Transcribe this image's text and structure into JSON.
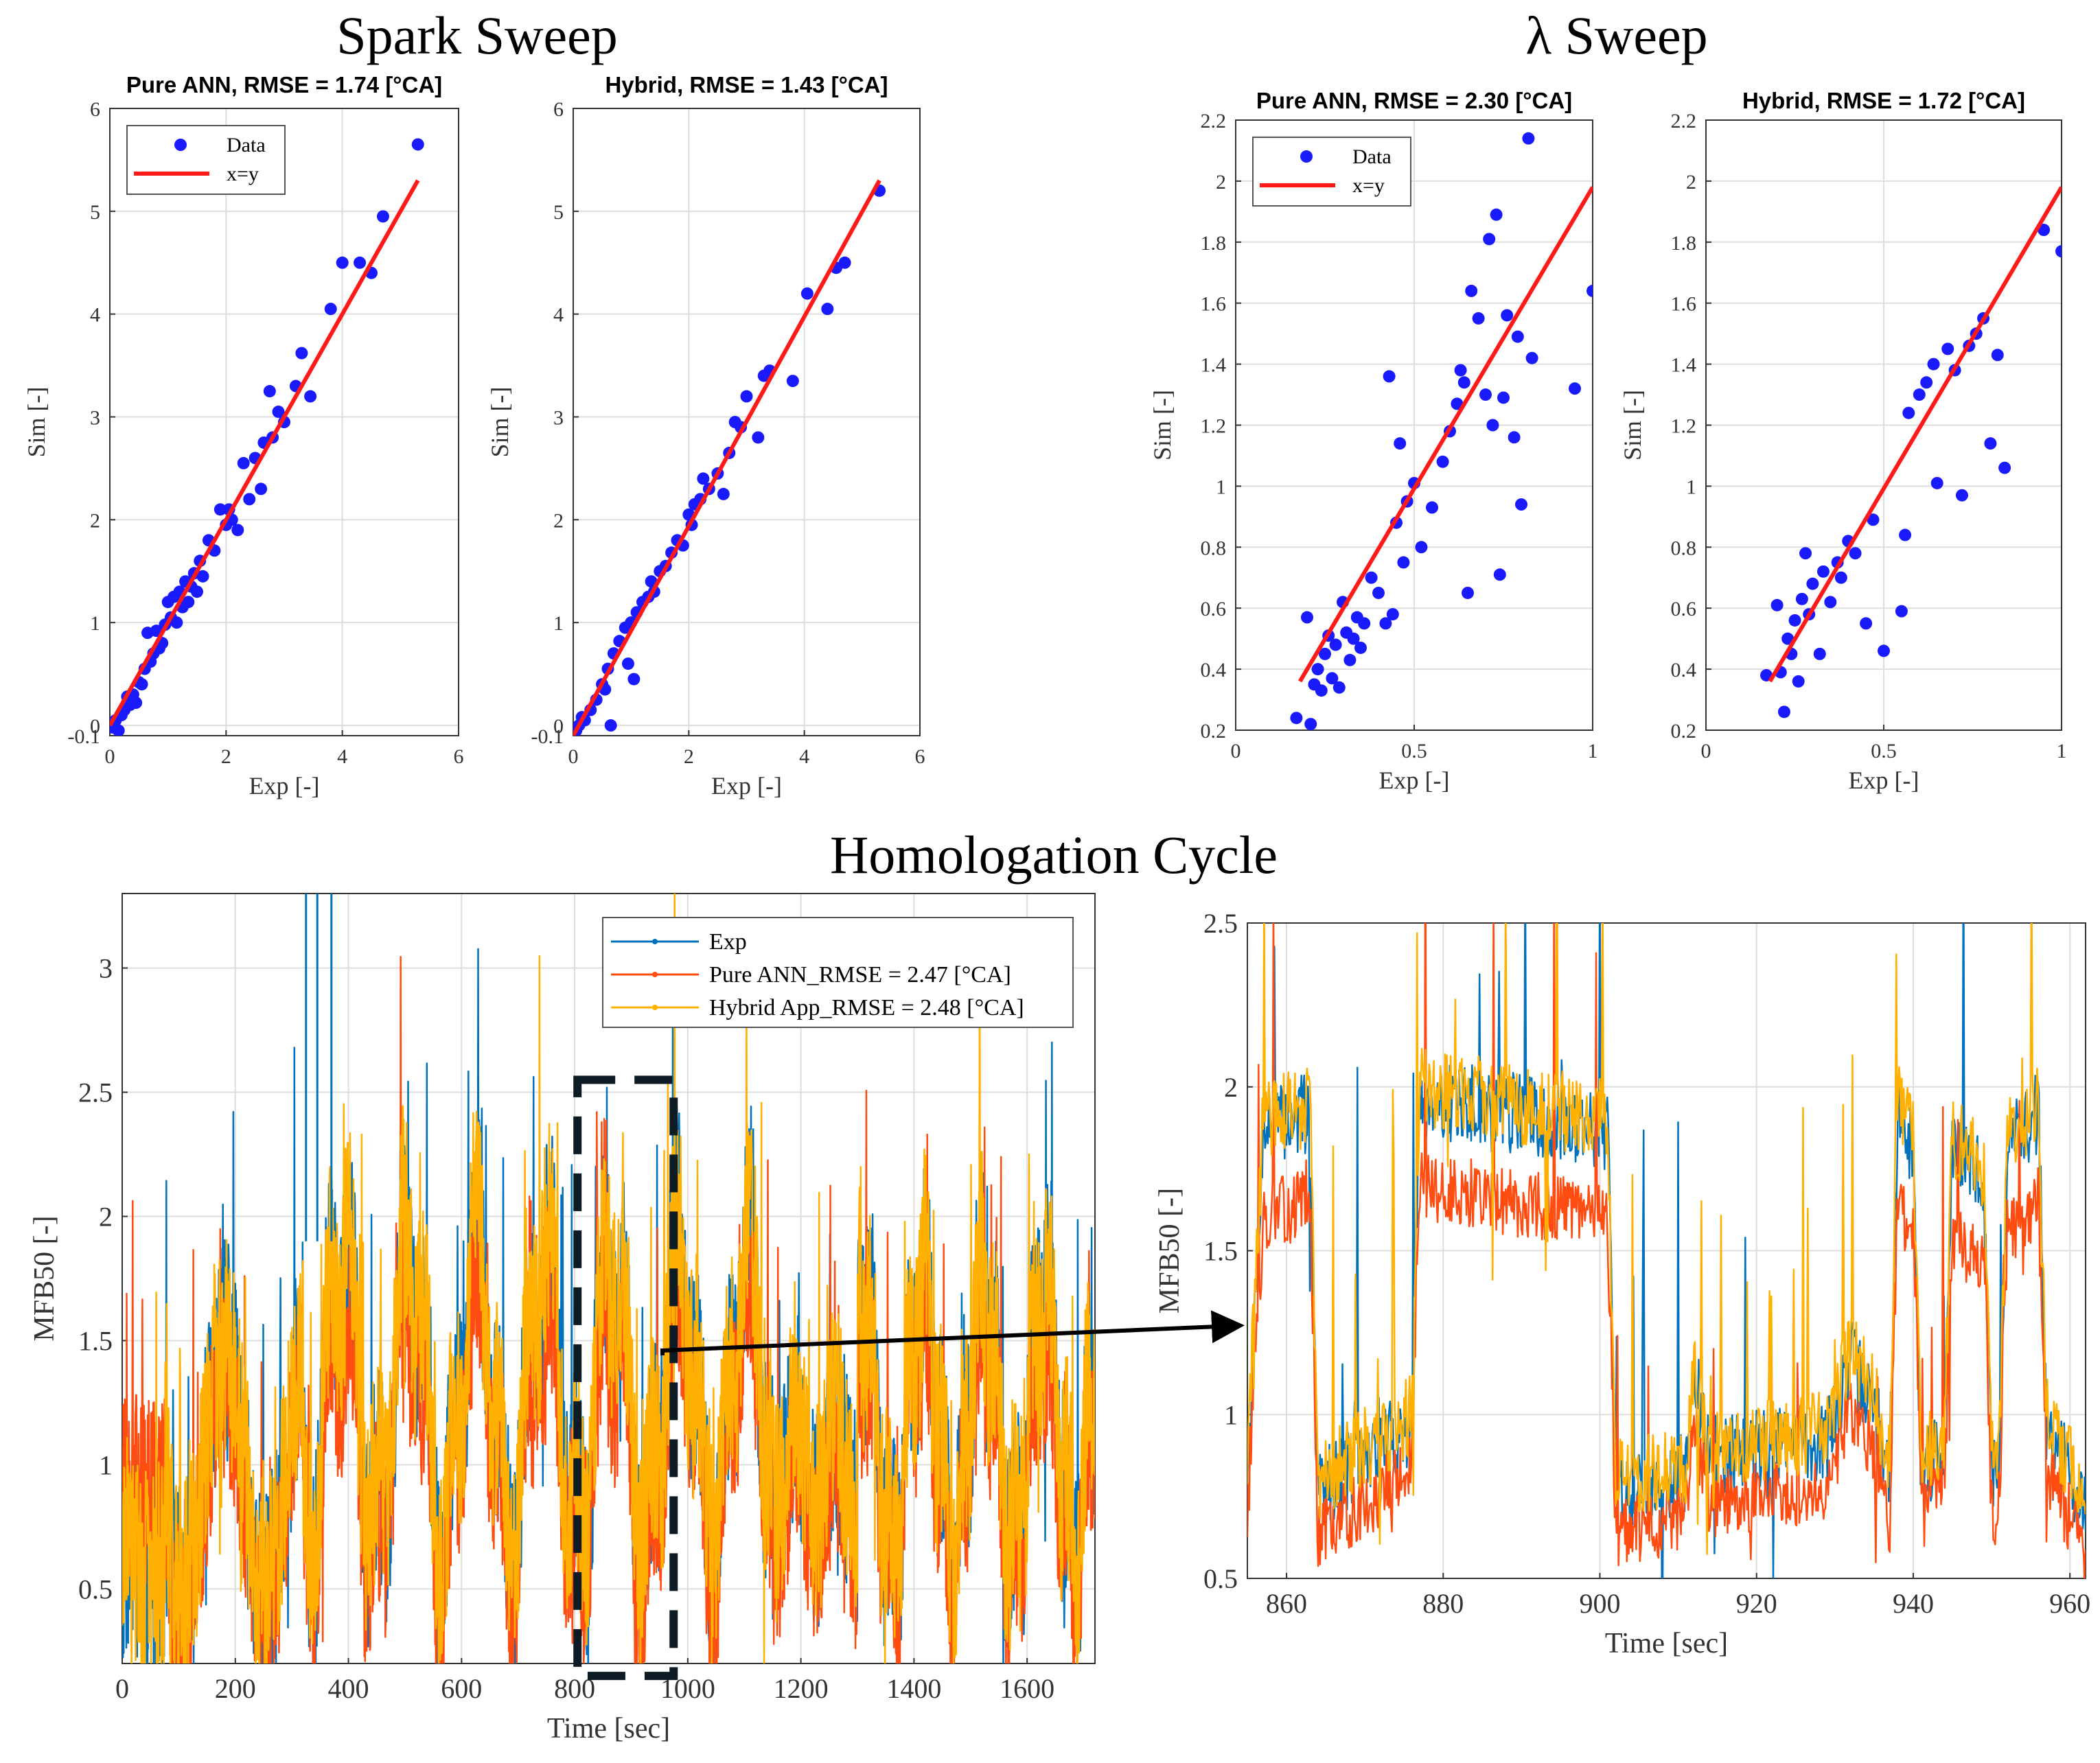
{
  "titles": {
    "spark": "Spark Sweep",
    "lambda": "λ Sweep",
    "homologation": "Homologation Cycle"
  },
  "colors": {
    "data": "#1a1aff",
    "xy_line": "#ff1a1a",
    "exp": "#0072bd",
    "pure_ann": "#ff4d12",
    "hybrid": "#ffb000",
    "grid": "#dedede",
    "axis": "#333333"
  },
  "chart_data": [
    {
      "id": "spark-ann",
      "type": "scatter",
      "title": "Pure ANN, RMSE = 1.74 [°CA]",
      "xlabel": "Exp [-]",
      "ylabel": "Sim [-]",
      "xlim": [
        0,
        6
      ],
      "ylim": [
        -0.1,
        6
      ],
      "xticks": [
        "0",
        "2",
        "4",
        "6"
      ],
      "yticks": [
        "-0.1",
        "0",
        "1",
        "2",
        "3",
        "4",
        "5",
        "6"
      ],
      "legend": [
        "Data",
        "x=y"
      ],
      "line": [
        [
          0,
          0
        ],
        [
          5.3,
          5.3
        ]
      ],
      "points": [
        [
          0.0,
          0.02
        ],
        [
          0.05,
          -0.02
        ],
        [
          0.1,
          0.05
        ],
        [
          0.15,
          -0.05
        ],
        [
          0.2,
          0.1
        ],
        [
          0.25,
          0.15
        ],
        [
          0.3,
          0.28
        ],
        [
          0.35,
          0.2
        ],
        [
          0.4,
          0.3
        ],
        [
          0.45,
          0.22
        ],
        [
          0.5,
          0.42
        ],
        [
          0.55,
          0.4
        ],
        [
          0.6,
          0.55
        ],
        [
          0.65,
          0.9
        ],
        [
          0.7,
          0.62
        ],
        [
          0.75,
          0.7
        ],
        [
          0.8,
          0.92
        ],
        [
          0.85,
          0.75
        ],
        [
          0.9,
          0.8
        ],
        [
          0.95,
          0.98
        ],
        [
          1.0,
          1.2
        ],
        [
          1.05,
          1.05
        ],
        [
          1.1,
          1.25
        ],
        [
          1.15,
          1.0
        ],
        [
          1.2,
          1.3
        ],
        [
          1.25,
          1.15
        ],
        [
          1.3,
          1.4
        ],
        [
          1.35,
          1.2
        ],
        [
          1.4,
          1.35
        ],
        [
          1.45,
          1.48
        ],
        [
          1.5,
          1.3
        ],
        [
          1.55,
          1.6
        ],
        [
          1.6,
          1.45
        ],
        [
          1.7,
          1.8
        ],
        [
          1.8,
          1.7
        ],
        [
          1.9,
          2.1
        ],
        [
          2.0,
          1.95
        ],
        [
          2.05,
          2.1
        ],
        [
          2.1,
          2.0
        ],
        [
          2.2,
          1.9
        ],
        [
          2.3,
          2.55
        ],
        [
          2.4,
          2.2
        ],
        [
          2.5,
          2.6
        ],
        [
          2.6,
          2.3
        ],
        [
          2.65,
          2.75
        ],
        [
          2.75,
          3.25
        ],
        [
          2.8,
          2.8
        ],
        [
          2.9,
          3.05
        ],
        [
          3.0,
          2.95
        ],
        [
          3.2,
          3.3
        ],
        [
          3.3,
          3.62
        ],
        [
          3.45,
          3.2
        ],
        [
          3.8,
          4.05
        ],
        [
          4.0,
          4.5
        ],
        [
          4.3,
          4.5
        ],
        [
          4.5,
          4.4
        ],
        [
          4.7,
          4.95
        ],
        [
          5.3,
          5.65
        ]
      ]
    },
    {
      "id": "spark-hybrid",
      "type": "scatter",
      "title": "Hybrid, RMSE = 1.43 [°CA]",
      "xlabel": "Exp [-]",
      "ylabel": "Sim [-]",
      "xlim": [
        0,
        6
      ],
      "ylim": [
        -0.1,
        6
      ],
      "xticks": [
        "0",
        "2",
        "4",
        "6"
      ],
      "yticks": [
        "-0.1",
        "0",
        "1",
        "2",
        "3",
        "4",
        "5",
        "6"
      ],
      "legend": [],
      "line": [
        [
          0,
          -0.1
        ],
        [
          5.3,
          5.3
        ]
      ],
      "points": [
        [
          0.0,
          -0.25
        ],
        [
          0.05,
          -0.05
        ],
        [
          0.1,
          0.0
        ],
        [
          0.15,
          0.08
        ],
        [
          0.2,
          0.05
        ],
        [
          0.3,
          0.15
        ],
        [
          0.4,
          0.25
        ],
        [
          0.5,
          0.4
        ],
        [
          0.55,
          0.35
        ],
        [
          0.6,
          0.55
        ],
        [
          0.65,
          0.0
        ],
        [
          0.7,
          0.7
        ],
        [
          0.8,
          0.82
        ],
        [
          0.9,
          0.95
        ],
        [
          0.95,
          0.6
        ],
        [
          1.0,
          1.0
        ],
        [
          1.05,
          0.45
        ],
        [
          1.1,
          1.1
        ],
        [
          1.2,
          1.2
        ],
        [
          1.3,
          1.25
        ],
        [
          1.35,
          1.4
        ],
        [
          1.4,
          1.3
        ],
        [
          1.5,
          1.5
        ],
        [
          1.6,
          1.55
        ],
        [
          1.7,
          1.68
        ],
        [
          1.8,
          1.8
        ],
        [
          1.9,
          1.75
        ],
        [
          2.0,
          2.05
        ],
        [
          2.05,
          1.95
        ],
        [
          2.1,
          2.15
        ],
        [
          2.2,
          2.2
        ],
        [
          2.25,
          2.4
        ],
        [
          2.35,
          2.3
        ],
        [
          2.5,
          2.45
        ],
        [
          2.6,
          2.25
        ],
        [
          2.7,
          2.65
        ],
        [
          2.8,
          2.95
        ],
        [
          2.9,
          2.9
        ],
        [
          3.0,
          3.2
        ],
        [
          3.2,
          2.8
        ],
        [
          3.3,
          3.4
        ],
        [
          3.4,
          3.45
        ],
        [
          3.8,
          3.35
        ],
        [
          4.05,
          4.2
        ],
        [
          4.4,
          4.05
        ],
        [
          4.55,
          4.45
        ],
        [
          4.7,
          4.5
        ],
        [
          5.3,
          5.2
        ]
      ]
    },
    {
      "id": "lambda-ann",
      "type": "scatter",
      "title": "Pure ANN, RMSE = 2.30 [°CA]",
      "xlabel": "Exp [-]",
      "ylabel": "Sim [-]",
      "xlim": [
        0,
        1
      ],
      "ylim": [
        0.2,
        2.2
      ],
      "xticks": [
        "0",
        "0.5",
        "1"
      ],
      "yticks": [
        "0.2",
        "0.4",
        "0.6",
        "0.8",
        "1",
        "1.2",
        "1.4",
        "1.6",
        "1.8",
        "2",
        "2.2"
      ],
      "legend": [
        "Data",
        "x=y"
      ],
      "line": [
        [
          0.18,
          0.36
        ],
        [
          1.0,
          1.98
        ]
      ],
      "points": [
        [
          0.17,
          0.24
        ],
        [
          0.2,
          0.57
        ],
        [
          0.21,
          0.22
        ],
        [
          0.22,
          0.35
        ],
        [
          0.23,
          0.4
        ],
        [
          0.24,
          0.33
        ],
        [
          0.25,
          0.45
        ],
        [
          0.26,
          0.51
        ],
        [
          0.27,
          0.37
        ],
        [
          0.28,
          0.48
        ],
        [
          0.29,
          0.34
        ],
        [
          0.3,
          0.62
        ],
        [
          0.31,
          0.52
        ],
        [
          0.32,
          0.43
        ],
        [
          0.33,
          0.5
        ],
        [
          0.34,
          0.57
        ],
        [
          0.35,
          0.47
        ],
        [
          0.36,
          0.55
        ],
        [
          0.38,
          0.7
        ],
        [
          0.4,
          0.65
        ],
        [
          0.42,
          0.55
        ],
        [
          0.43,
          1.36
        ],
        [
          0.44,
          0.58
        ],
        [
          0.45,
          0.88
        ],
        [
          0.46,
          1.14
        ],
        [
          0.47,
          0.75
        ],
        [
          0.48,
          0.95
        ],
        [
          0.5,
          1.01
        ],
        [
          0.52,
          0.8
        ],
        [
          0.55,
          0.93
        ],
        [
          0.58,
          1.08
        ],
        [
          0.6,
          1.18
        ],
        [
          0.62,
          1.27
        ],
        [
          0.63,
          1.38
        ],
        [
          0.64,
          1.34
        ],
        [
          0.65,
          0.65
        ],
        [
          0.66,
          1.64
        ],
        [
          0.68,
          1.55
        ],
        [
          0.7,
          1.3
        ],
        [
          0.71,
          1.81
        ],
        [
          0.72,
          1.2
        ],
        [
          0.73,
          1.89
        ],
        [
          0.74,
          0.71
        ],
        [
          0.75,
          1.29
        ],
        [
          0.76,
          1.56
        ],
        [
          0.78,
          1.16
        ],
        [
          0.79,
          1.49
        ],
        [
          0.8,
          0.94
        ],
        [
          0.82,
          2.14
        ],
        [
          0.83,
          1.42
        ],
        [
          0.95,
          1.32
        ],
        [
          1.0,
          1.64
        ]
      ]
    },
    {
      "id": "lambda-hybrid",
      "type": "scatter",
      "title": "Hybrid, RMSE = 1.72 [°CA]",
      "xlabel": "Exp [-]",
      "ylabel": "Sim [-]",
      "xlim": [
        0,
        1
      ],
      "ylim": [
        0.2,
        2.2
      ],
      "xticks": [
        "0",
        "0.5",
        "1"
      ],
      "yticks": [
        "0.2",
        "0.4",
        "0.6",
        "0.8",
        "1",
        "1.2",
        "1.4",
        "1.6",
        "1.8",
        "2",
        "2.2"
      ],
      "legend": [],
      "line": [
        [
          0.18,
          0.36
        ],
        [
          1.0,
          1.98
        ]
      ],
      "points": [
        [
          0.17,
          0.38
        ],
        [
          0.2,
          0.61
        ],
        [
          0.21,
          0.39
        ],
        [
          0.22,
          0.26
        ],
        [
          0.23,
          0.5
        ],
        [
          0.24,
          0.45
        ],
        [
          0.25,
          0.56
        ],
        [
          0.26,
          0.36
        ],
        [
          0.27,
          0.63
        ],
        [
          0.28,
          0.78
        ],
        [
          0.29,
          0.58
        ],
        [
          0.3,
          0.68
        ],
        [
          0.32,
          0.45
        ],
        [
          0.33,
          0.72
        ],
        [
          0.35,
          0.62
        ],
        [
          0.37,
          0.75
        ],
        [
          0.38,
          0.7
        ],
        [
          0.4,
          0.82
        ],
        [
          0.42,
          0.78
        ],
        [
          0.45,
          0.55
        ],
        [
          0.47,
          0.89
        ],
        [
          0.5,
          0.46
        ],
        [
          0.55,
          0.59
        ],
        [
          0.56,
          0.84
        ],
        [
          0.57,
          1.24
        ],
        [
          0.6,
          1.3
        ],
        [
          0.62,
          1.34
        ],
        [
          0.64,
          1.4
        ],
        [
          0.65,
          1.01
        ],
        [
          0.68,
          1.45
        ],
        [
          0.7,
          1.38
        ],
        [
          0.72,
          0.97
        ],
        [
          0.74,
          1.46
        ],
        [
          0.76,
          1.5
        ],
        [
          0.78,
          1.55
        ],
        [
          0.8,
          1.14
        ],
        [
          0.82,
          1.43
        ],
        [
          0.84,
          1.06
        ],
        [
          0.95,
          1.84
        ],
        [
          1.0,
          1.77
        ]
      ]
    },
    {
      "id": "homologation-full",
      "type": "line",
      "title": "",
      "xlabel": "Time [sec]",
      "ylabel": "MFB50 [-]",
      "xlim": [
        0,
        1720
      ],
      "ylim": [
        0.2,
        3.3
      ],
      "xticks": [
        "0",
        "200",
        "400",
        "600",
        "800",
        "1000",
        "1200",
        "1400",
        "1600"
      ],
      "yticks": [
        "0.5",
        "1",
        "1.5",
        "2",
        "2.5",
        "3"
      ],
      "series": [
        {
          "name": "Exp",
          "key": "exp"
        },
        {
          "name": "Pure ANN_RMSE = 2.47 [°CA]",
          "key": "ann"
        },
        {
          "name": "Hybrid App_RMSE = 2.48 [°CA]",
          "key": "hyb"
        }
      ],
      "zoom_window": [
        805,
        975
      ],
      "zoom_ylim": [
        0.15,
        2.55
      ]
    },
    {
      "id": "homologation-zoom",
      "type": "line",
      "title": "",
      "xlabel": "Time [sec]",
      "ylabel": "MFB50 [-]",
      "xlim": [
        855,
        962
      ],
      "ylim": [
        0.5,
        2.5
      ],
      "xticks": [
        "860",
        "880",
        "900",
        "920",
        "940",
        "960"
      ],
      "yticks": [
        "0.5",
        "1",
        "1.5",
        "2",
        "2.5"
      ],
      "series": [
        {
          "name": "Exp",
          "key": "exp"
        },
        {
          "name": "Pure ANN",
          "key": "ann"
        },
        {
          "name": "Hybrid App",
          "key": "hyb"
        }
      ]
    }
  ]
}
